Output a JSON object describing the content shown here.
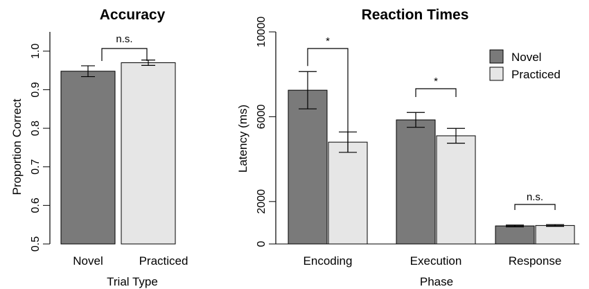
{
  "colors": {
    "novel": "#7a7a7a",
    "practiced": "#e6e6e6",
    "stroke": "#000000"
  },
  "chart_data": [
    {
      "type": "bar",
      "title": "Accuracy",
      "xlabel": "Trial Type",
      "ylabel": "Proportion Correct",
      "ylim": [
        0.5,
        1.05
      ],
      "yticks": [
        "0.5",
        "0.6",
        "0.7",
        "0.8",
        "0.9",
        "1.0"
      ],
      "categories": [
        "Novel",
        "Practiced"
      ],
      "series": [
        {
          "values": [
            0.948,
            0.97
          ],
          "errors": [
            0.014,
            0.007
          ]
        }
      ],
      "comparisons": [
        {
          "label": "n.s."
        }
      ]
    },
    {
      "type": "bar",
      "title": "Reaction Times",
      "xlabel": "Phase",
      "ylabel": "Latency (ms)",
      "ylim": [
        0,
        10000
      ],
      "yticks": [
        "0",
        "2000",
        "6000",
        "10000"
      ],
      "categories": [
        "Encoding",
        "Execution",
        "Response"
      ],
      "legend_position": "top-right",
      "series": [
        {
          "name": "Novel",
          "values": [
            7250,
            5850,
            850
          ],
          "errors": [
            880,
            350,
            40
          ]
        },
        {
          "name": "Practiced",
          "values": [
            4800,
            5100,
            870
          ],
          "errors": [
            480,
            350,
            40
          ]
        }
      ],
      "comparisons": [
        {
          "label": "*"
        },
        {
          "label": "*"
        },
        {
          "label": "n.s."
        }
      ]
    }
  ]
}
